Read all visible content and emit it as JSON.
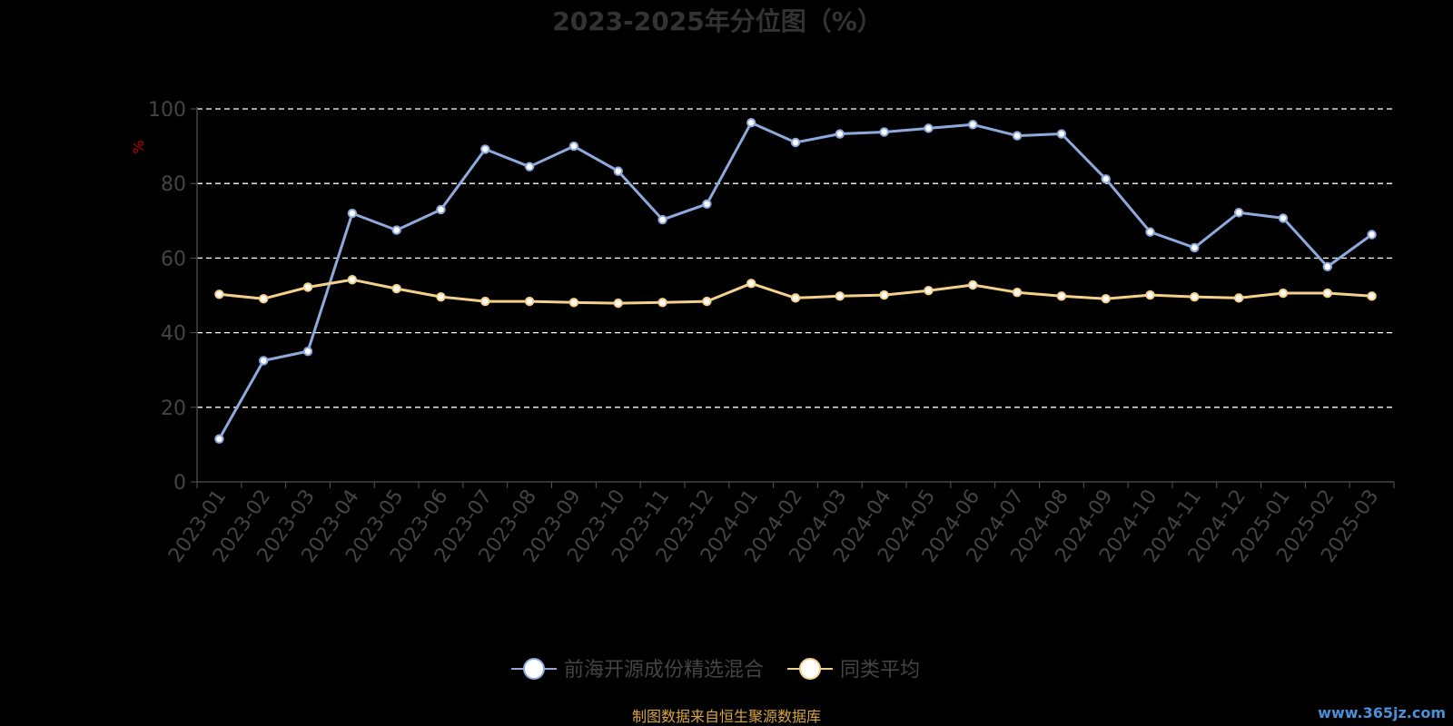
{
  "chart_data": {
    "type": "line",
    "title": "2023-2025年分位图（%）",
    "ylabel": "%",
    "ylim": [
      0,
      100
    ],
    "yticks": [
      0,
      20,
      40,
      60,
      80,
      100
    ],
    "grid": true,
    "legend_position": "bottom-center",
    "x": [
      "2023-01",
      "2023-02",
      "2023-03",
      "2023-04",
      "2023-05",
      "2023-06",
      "2023-07",
      "2023-08",
      "2023-09",
      "2023-10",
      "2023-11",
      "2023-12",
      "2024-01",
      "2024-02",
      "2024-03",
      "2024-04",
      "2024-05",
      "2024-06",
      "2024-07",
      "2024-08",
      "2024-09",
      "2024-10",
      "2024-11",
      "2024-12",
      "2025-01",
      "2025-02",
      "2025-03"
    ],
    "series": [
      {
        "name": "前海开源成份精选混合",
        "color": "#8eaadc",
        "values": [
          11.5,
          32.5,
          35,
          72,
          67.5,
          73,
          89.2,
          84.5,
          90,
          83.3,
          70.3,
          74.5,
          96.3,
          91,
          93.3,
          93.8,
          94.8,
          95.8,
          92.8,
          93.3,
          81.2,
          67,
          62.8,
          72.2,
          70.7,
          57.7,
          66.3
        ]
      },
      {
        "name": "同类平均",
        "color": "#f5d08a",
        "values": [
          50.3,
          49.1,
          52.2,
          54.2,
          51.8,
          49.6,
          48.4,
          48.4,
          48.1,
          47.9,
          48.1,
          48.4,
          53.2,
          49.3,
          49.8,
          50.1,
          51.3,
          52.8,
          50.8,
          49.8,
          49.1,
          50.1,
          49.6,
          49.3,
          50.6,
          50.6,
          49.8
        ]
      }
    ]
  },
  "footer": {
    "source_text": "制图数据来自恒生聚源数据库",
    "watermark": "www.365jz.com"
  }
}
